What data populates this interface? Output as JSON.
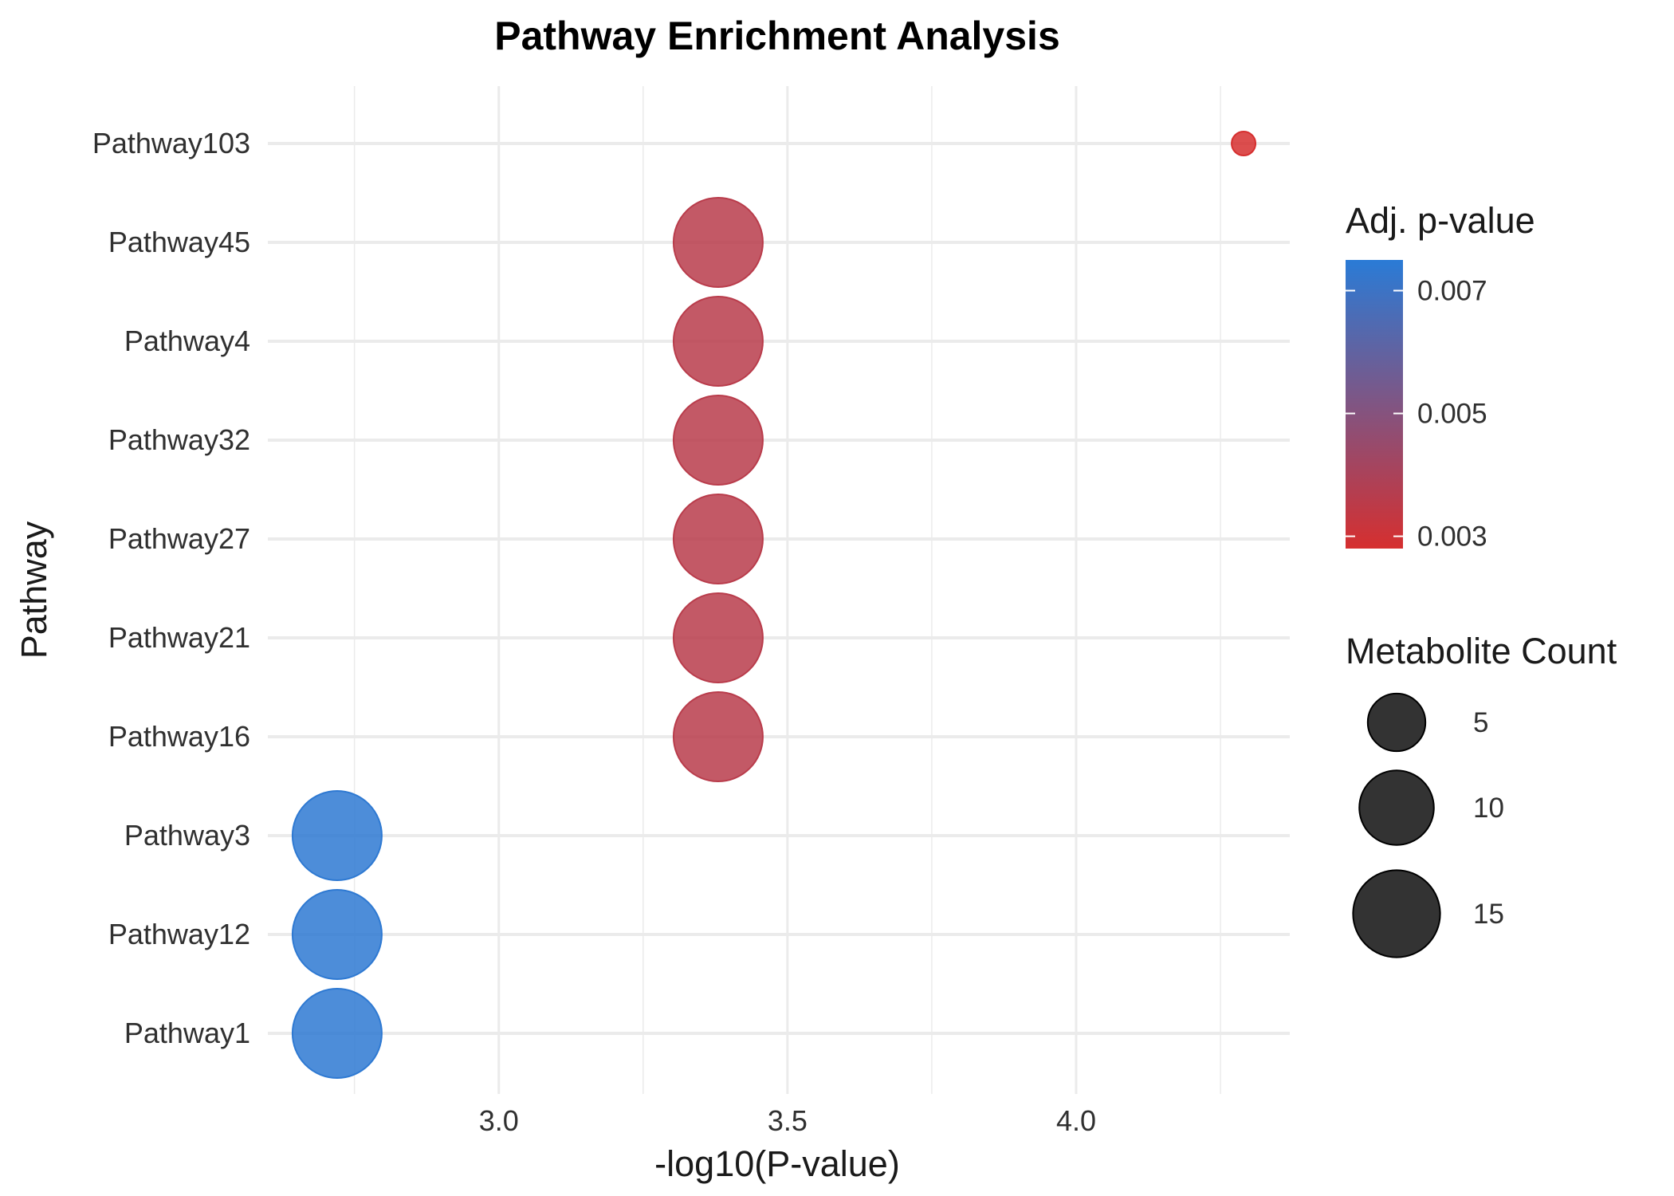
{
  "chart_data": {
    "type": "scatter",
    "title": "Pathway Enrichment Analysis",
    "xlabel": "-log10(P-value)",
    "ylabel": "Pathway",
    "xlim": [
      2.6,
      4.37
    ],
    "x_ticks": [
      "3.0",
      "3.5",
      "4.0"
    ],
    "x_tick_values": [
      3.0,
      3.5,
      4.0
    ],
    "grid": true,
    "categories": [
      "Pathway103",
      "Pathway45",
      "Pathway4",
      "Pathway32",
      "Pathway27",
      "Pathway21",
      "Pathway16",
      "Pathway3",
      "Pathway12",
      "Pathway1"
    ],
    "points": [
      {
        "pathway": "Pathway103",
        "x": 4.29,
        "count": 1,
        "adj_p": 0.0028
      },
      {
        "pathway": "Pathway45",
        "x": 3.38,
        "count": 16,
        "adj_p": 0.0036
      },
      {
        "pathway": "Pathway4",
        "x": 3.38,
        "count": 16,
        "adj_p": 0.0036
      },
      {
        "pathway": "Pathway32",
        "x": 3.38,
        "count": 16,
        "adj_p": 0.0036
      },
      {
        "pathway": "Pathway27",
        "x": 3.38,
        "count": 16,
        "adj_p": 0.0036
      },
      {
        "pathway": "Pathway21",
        "x": 3.38,
        "count": 16,
        "adj_p": 0.0036
      },
      {
        "pathway": "Pathway16",
        "x": 3.38,
        "count": 16,
        "adj_p": 0.0036
      },
      {
        "pathway": "Pathway3",
        "x": 2.72,
        "count": 16,
        "adj_p": 0.0074
      },
      {
        "pathway": "Pathway12",
        "x": 2.72,
        "count": 16,
        "adj_p": 0.0074
      },
      {
        "pathway": "Pathway1",
        "x": 2.72,
        "count": 16,
        "adj_p": 0.0074
      }
    ],
    "color_legend": {
      "title": "Adj. p-value",
      "low_color": "#d62f2f",
      "high_color": "#2a7bd6",
      "range": [
        0.0028,
        0.0075
      ],
      "ticks": [
        "0.007",
        "0.005",
        "0.003"
      ],
      "tick_values": [
        0.007,
        0.005,
        0.003
      ]
    },
    "size_legend": {
      "title": "Metabolite Count",
      "labels": [
        "5",
        "10",
        "15"
      ],
      "values": [
        5,
        10,
        15
      ]
    },
    "legend_position": "right"
  }
}
